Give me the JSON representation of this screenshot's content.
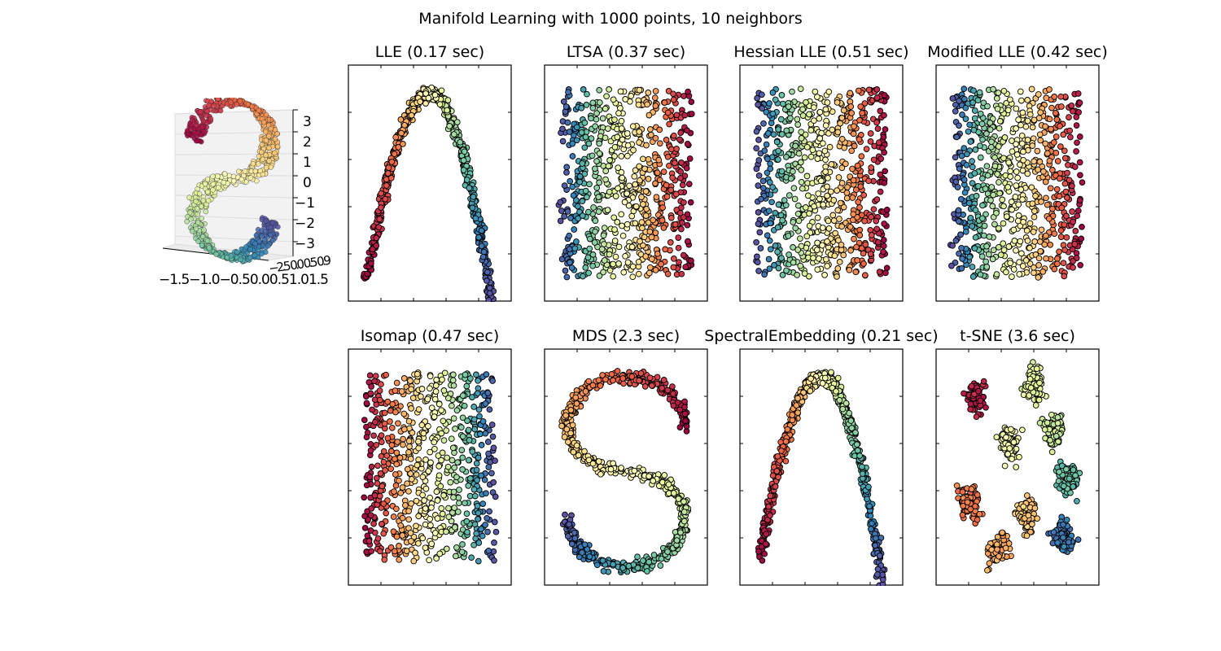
{
  "figure": {
    "suptitle": "Manifold Learning with 1000 points, 10 neighbors",
    "colormap": [
      "#9e0142",
      "#d53e4f",
      "#f46d43",
      "#fdae61",
      "#fee08b",
      "#ffffbf",
      "#e6f598",
      "#abdda4",
      "#66c2a5",
      "#3288bd",
      "#5e4fa2"
    ],
    "axes_3d": {
      "z_ticks": [
        "3",
        "2",
        "1",
        "0",
        "−1",
        "−2",
        "−3"
      ],
      "x_ticks_text": "−1.5−1.0−0.50.00.51.01.5",
      "y_ticks_text": "−2.5 0.0 0.5 0.9"
    }
  },
  "chart_data": [
    {
      "type": "scatter",
      "title": "LLE (0.17 sec)",
      "shape": "arch"
    },
    {
      "type": "scatter",
      "title": "LTSA (0.37 sec)",
      "shape": "rect",
      "direction": "h"
    },
    {
      "type": "scatter",
      "title": "Hessian LLE (0.51 sec)",
      "shape": "rect",
      "direction": "h"
    },
    {
      "type": "scatter",
      "title": "Modified LLE (0.42 sec)",
      "shape": "rect",
      "direction": "h"
    },
    {
      "type": "scatter",
      "title": "Isomap (0.47 sec)",
      "shape": "rect",
      "direction": "h-rev"
    },
    {
      "type": "scatter",
      "title": "MDS (2.3 sec)",
      "shape": "s-curve"
    },
    {
      "type": "scatter",
      "title": "SpectralEmbedding (0.21 sec)",
      "shape": "arch"
    },
    {
      "type": "scatter",
      "title": "t-SNE (3.6 sec)",
      "shape": "clusters"
    }
  ]
}
